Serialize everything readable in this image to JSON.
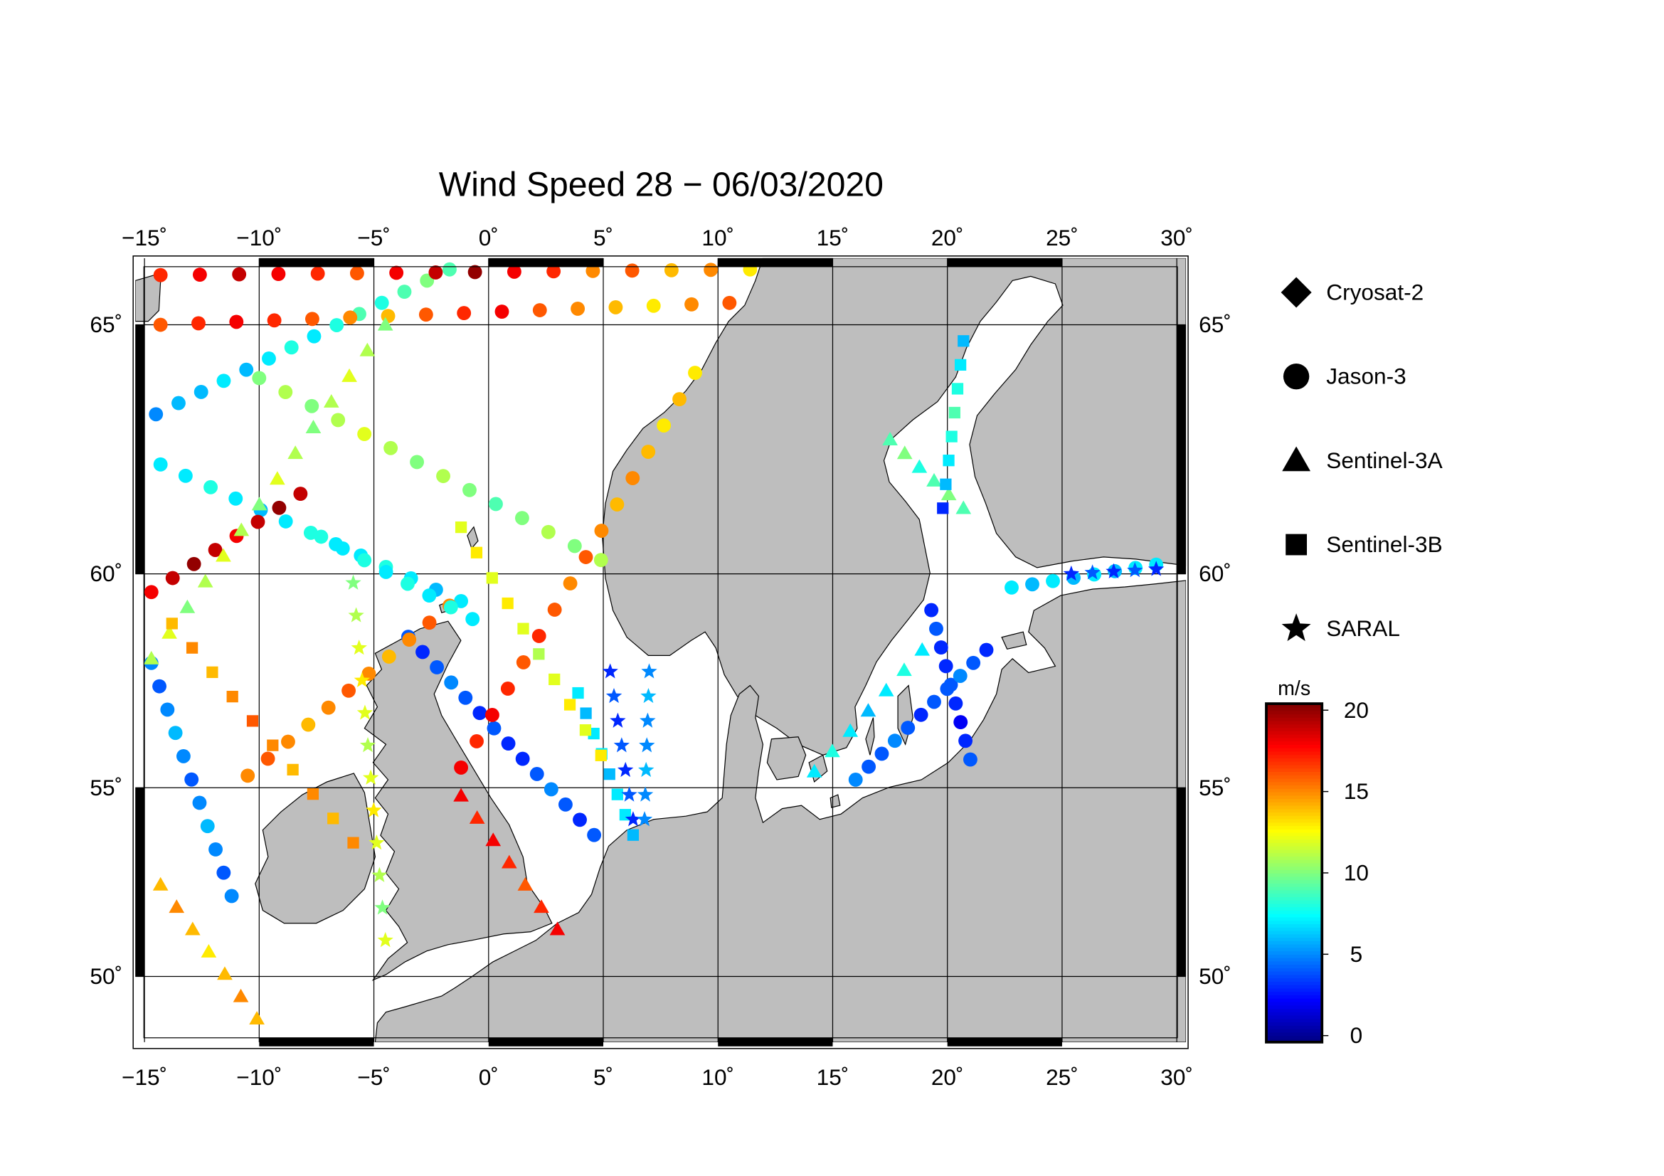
{
  "chart_data": {
    "type": "track-map",
    "title": "Wind Speed 28 − 06/03/2020",
    "xlim": [
      -15.4,
      30.4
    ],
    "ylim": [
      48.0,
      66.2
    ],
    "xticks": [
      {
        "value": -15,
        "label": "−15˚"
      },
      {
        "value": -10,
        "label": "−10˚"
      },
      {
        "value": -5,
        "label": "−5˚"
      },
      {
        "value": 0,
        "label": "0˚"
      },
      {
        "value": 5,
        "label": "5˚"
      },
      {
        "value": 10,
        "label": "10˚"
      },
      {
        "value": 15,
        "label": "15˚"
      },
      {
        "value": 20,
        "label": "20˚"
      },
      {
        "value": 25,
        "label": "25˚"
      },
      {
        "value": 30,
        "label": "30˚"
      }
    ],
    "yticks": [
      {
        "value": 50,
        "label": "50˚"
      },
      {
        "value": 55,
        "label": "55˚"
      },
      {
        "value": 60,
        "label": "60˚"
      },
      {
        "value": 65,
        "label": "65˚"
      }
    ],
    "grid": true,
    "satellites": [
      {
        "name": "Cryosat-2",
        "marker": "diamond"
      },
      {
        "name": "Jason-3",
        "marker": "circle"
      },
      {
        "name": "Sentinel-3A",
        "marker": "triangle"
      },
      {
        "name": "Sentinel-3B",
        "marker": "square"
      },
      {
        "name": "SARAL",
        "marker": "star"
      }
    ],
    "colorbar": {
      "label": "m/s",
      "range": [
        -0.4,
        20.4
      ],
      "ticks": [
        0,
        5,
        10,
        15,
        20
      ],
      "colormap": "jet"
    },
    "tracks": [
      {
        "satellite": 1,
        "from": [
          -14.5,
          63.3
        ],
        "to": [
          -1.7,
          66.0
        ],
        "values": [
          5,
          6,
          6,
          7,
          6,
          7,
          8,
          7,
          8,
          9,
          8,
          9,
          10,
          9
        ]
      },
      {
        "satellite": 1,
        "from": [
          -14.3,
          65.9
        ],
        "to": [
          11.4,
          66.0
        ],
        "values": [
          17,
          18,
          19,
          18,
          17,
          16,
          18,
          19,
          20,
          18,
          17,
          15,
          16,
          14,
          15,
          13
        ]
      },
      {
        "satellite": 1,
        "from": [
          -14.3,
          65.0
        ],
        "to": [
          10.5,
          65.4
        ],
        "values": [
          16,
          17,
          18,
          17,
          16,
          15,
          14,
          16,
          17,
          18,
          16,
          15,
          14,
          13,
          15,
          16
        ]
      },
      {
        "satellite": 1,
        "from": [
          -10.0,
          64.0
        ],
        "to": [
          4.9,
          60.3
        ],
        "values": [
          10,
          11,
          10,
          11,
          12,
          11,
          10,
          11,
          10,
          9,
          10,
          11,
          10,
          11
        ]
      },
      {
        "satellite": 1,
        "from": [
          -14.3,
          62.3
        ],
        "to": [
          -1.2,
          59.4
        ],
        "values": [
          7,
          7,
          8,
          7,
          6,
          7,
          8,
          7,
          7,
          8,
          7,
          6,
          7
        ]
      },
      {
        "satellite": 1,
        "from": [
          -3.5,
          58.6
        ],
        "to": [
          4.6,
          53.8
        ],
        "values": [
          4,
          3,
          4,
          5,
          4,
          3,
          4,
          3,
          3,
          4,
          5,
          4,
          3,
          4
        ]
      },
      {
        "satellite": 1,
        "from": [
          -1.2,
          55.5
        ],
        "to": [
          9.0,
          64.1
        ],
        "values": [
          18,
          17,
          18,
          17,
          16,
          17,
          16,
          15,
          16,
          15,
          14,
          15,
          14,
          13,
          14,
          13
        ]
      },
      {
        "satellite": 1,
        "from": [
          -10.5,
          55.3
        ],
        "to": [
          -1.7,
          59.3
        ],
        "values": [
          15,
          16,
          15,
          14,
          15,
          16,
          15,
          14,
          15,
          16,
          15
        ]
      },
      {
        "satellite": 1,
        "from": [
          -14.7,
          58.0
        ],
        "to": [
          -11.2,
          52.2
        ],
        "values": [
          5,
          4,
          5,
          6,
          5,
          4,
          5,
          6,
          5,
          4,
          5
        ]
      },
      {
        "satellite": 1,
        "from": [
          -14.7,
          59.6
        ],
        "to": [
          -8.2,
          61.7
        ],
        "values": [
          18,
          19,
          20,
          19,
          18,
          19,
          20,
          19
        ]
      },
      {
        "satellite": 1,
        "from": [
          19.3,
          59.2
        ],
        "to": [
          21.0,
          55.7
        ],
        "values": [
          3,
          4,
          3,
          3,
          4,
          3,
          2,
          3,
          4
        ]
      },
      {
        "satellite": 1,
        "from": [
          16.0,
          55.2
        ],
        "to": [
          21.7,
          58.3
        ],
        "values": [
          5,
          4,
          4,
          5,
          4,
          3,
          4,
          4,
          5,
          4,
          3
        ]
      },
      {
        "satellite": 1,
        "from": [
          22.8,
          59.7
        ],
        "to": [
          29.1,
          60.2
        ],
        "values": [
          7,
          6,
          7,
          6,
          7,
          6,
          7,
          7
        ]
      },
      {
        "satellite": 1,
        "from": [
          -7.3,
          60.8
        ],
        "to": [
          -0.7,
          59.0
        ],
        "values": [
          8,
          7,
          8,
          7,
          8,
          7,
          8,
          7
        ]
      },
      {
        "satellite": 2,
        "from": [
          -14.7,
          58.1
        ],
        "to": [
          -4.5,
          65.0
        ],
        "values": [
          11,
          12,
          10,
          11,
          12,
          11,
          10,
          12,
          11,
          10,
          11,
          12,
          11,
          10
        ]
      },
      {
        "satellite": 2,
        "from": [
          -14.3,
          52.5
        ],
        "to": [
          -10.1,
          48.8
        ],
        "values": [
          14,
          15,
          14,
          13,
          14,
          15,
          14
        ]
      },
      {
        "satellite": 2,
        "from": [
          -1.2,
          54.8
        ],
        "to": [
          3.0,
          51.3
        ],
        "values": [
          18,
          17,
          18,
          17,
          16,
          17,
          18
        ]
      },
      {
        "satellite": 2,
        "from": [
          14.2,
          55.4
        ],
        "to": [
          18.9,
          58.3
        ],
        "values": [
          7,
          8,
          7,
          6,
          7,
          8,
          7
        ]
      },
      {
        "satellite": 2,
        "from": [
          17.5,
          62.8
        ],
        "to": [
          20.7,
          61.4
        ],
        "values": [
          9,
          10,
          8,
          9,
          10,
          9
        ]
      },
      {
        "satellite": 3,
        "from": [
          3.9,
          57.3
        ],
        "to": [
          6.3,
          53.8
        ],
        "values": [
          7,
          6,
          7,
          7,
          6,
          7,
          7,
          6
        ]
      },
      {
        "satellite": 3,
        "from": [
          -13.8,
          58.9
        ],
        "to": [
          -5.9,
          53.6
        ],
        "values": [
          14,
          15,
          14,
          15,
          16,
          15,
          14,
          15,
          14,
          15
        ]
      },
      {
        "satellite": 3,
        "from": [
          -1.2,
          61.0
        ],
        "to": [
          4.9,
          55.8
        ],
        "values": [
          12,
          13,
          12,
          13,
          12,
          11,
          12,
          13,
          12,
          13
        ]
      },
      {
        "satellite": 3,
        "from": [
          20.7,
          64.7
        ],
        "to": [
          19.8,
          61.4
        ],
        "values": [
          6,
          7,
          8,
          9,
          8,
          7,
          6,
          3
        ]
      },
      {
        "satellite": 4,
        "from": [
          5.3,
          57.8
        ],
        "to": [
          6.3,
          54.2
        ],
        "values": [
          3,
          4,
          3,
          4,
          3,
          4,
          3
        ]
      },
      {
        "satellite": 4,
        "from": [
          7.0,
          57.8
        ],
        "to": [
          6.8,
          54.2
        ],
        "values": [
          5,
          6,
          5,
          5,
          6,
          5,
          5
        ]
      },
      {
        "satellite": 4,
        "from": [
          -5.9,
          59.8
        ],
        "to": [
          -4.5,
          51.0
        ],
        "values": [
          10,
          11,
          12,
          13,
          12,
          11,
          12,
          13,
          12,
          11,
          10,
          12
        ]
      },
      {
        "satellite": 4,
        "from": [
          25.4,
          60.0
        ],
        "to": [
          29.1,
          60.1
        ],
        "values": [
          3,
          4,
          3,
          4,
          3
        ]
      }
    ]
  }
}
